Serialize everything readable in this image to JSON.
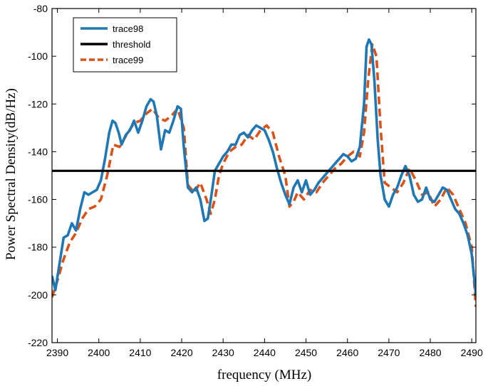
{
  "chart_data": {
    "type": "line",
    "xlabel": "frequency (MHz)",
    "ylabel": "Power Spectral Density(dB/Hz)",
    "xlim": [
      2388.7,
      2491
    ],
    "ylim": [
      -220,
      -80
    ],
    "xticks": [
      2390,
      2400,
      2410,
      2420,
      2430,
      2440,
      2450,
      2460,
      2470,
      2480,
      2490
    ],
    "yticks": [
      -220,
      -200,
      -180,
      -160,
      -140,
      -120,
      -100,
      -80
    ],
    "grid": false,
    "legend_position": "top-left",
    "series": [
      {
        "name": "trace98",
        "color": "#1f77b4",
        "style": "solid",
        "x": [
          2388.7,
          2389.5,
          2390.5,
          2391.5,
          2392.5,
          2393.5,
          2394.5,
          2395.5,
          2396.5,
          2397.5,
          2398.5,
          2399.5,
          2400.5,
          2401.5,
          2402.5,
          2403.3,
          2404,
          2404.8,
          2405.5,
          2406.5,
          2407.5,
          2408.5,
          2409.5,
          2410.5,
          2411.5,
          2412.5,
          2413.2,
          2414,
          2415,
          2416,
          2417,
          2418,
          2419,
          2419.8,
          2420.5,
          2421.5,
          2422.5,
          2423.5,
          2424.5,
          2425.5,
          2426.3,
          2427.2,
          2428,
          2429,
          2430,
          2431,
          2432,
          2433,
          2434,
          2435,
          2436,
          2437,
          2438,
          2439,
          2440,
          2441,
          2442,
          2443,
          2444,
          2445,
          2446,
          2447,
          2448,
          2449,
          2450,
          2451,
          2452,
          2453,
          2454,
          2455,
          2456,
          2457,
          2458,
          2459,
          2460,
          2461,
          2462,
          2463,
          2464,
          2464.6,
          2465.2,
          2465.8,
          2466.5,
          2467.3,
          2468,
          2469,
          2470,
          2471,
          2472,
          2473,
          2474,
          2475,
          2476,
          2477,
          2478,
          2479,
          2480,
          2481,
          2482,
          2483,
          2484,
          2485,
          2486,
          2487,
          2488,
          2489,
          2490,
          2491
        ],
        "y": [
          -192,
          -198,
          -187,
          -176,
          -175,
          -170,
          -173,
          -164,
          -157,
          -158,
          -157,
          -156,
          -152,
          -143,
          -132,
          -127,
          -128,
          -132,
          -137,
          -133,
          -131,
          -127,
          -132,
          -127,
          -121,
          -118,
          -119,
          -125,
          -139,
          -131,
          -132,
          -127,
          -121,
          -122,
          -138,
          -155,
          -157,
          -155,
          -160,
          -169,
          -168,
          -158,
          -148,
          -145,
          -142,
          -140,
          -137,
          -137,
          -133,
          -132,
          -134,
          -131,
          -129,
          -130,
          -131,
          -135,
          -140,
          -147,
          -153,
          -158,
          -162,
          -155,
          -152,
          -157,
          -152,
          -158,
          -156,
          -153,
          -151,
          -149,
          -147,
          -145,
          -143,
          -141,
          -142,
          -144,
          -143,
          -138,
          -120,
          -96,
          -93,
          -95,
          -110,
          -135,
          -150,
          -160,
          -163,
          -158,
          -155,
          -150,
          -146,
          -150,
          -158,
          -161,
          -160,
          -155,
          -160,
          -161,
          -158,
          -155,
          -156,
          -160,
          -164,
          -166,
          -170,
          -175,
          -183,
          -200
        ]
      },
      {
        "name": "threshold",
        "color": "#000000",
        "style": "solid",
        "x": [
          2388.7,
          2491
        ],
        "y": [
          -148,
          -148
        ]
      },
      {
        "name": "trace99",
        "color": "#d95319",
        "style": "dashed",
        "x": [
          2388.7,
          2390,
          2391.5,
          2393,
          2394.5,
          2396,
          2397.5,
          2399,
          2400.5,
          2402,
          2403.5,
          2405,
          2406,
          2407,
          2408.5,
          2410,
          2411.5,
          2413,
          2414.5,
          2416,
          2417.5,
          2419,
          2420.5,
          2421.5,
          2423,
          2424.5,
          2426,
          2427,
          2428,
          2429,
          2430,
          2431.5,
          2433,
          2434.5,
          2436,
          2437.5,
          2439,
          2440.5,
          2442,
          2443.5,
          2445,
          2446,
          2447,
          2448,
          2449.5,
          2451,
          2452.5,
          2454,
          2455.5,
          2457,
          2458.5,
          2460,
          2461.5,
          2463,
          2464,
          2465,
          2466,
          2467,
          2468,
          2469,
          2470.5,
          2472,
          2473.5,
          2475,
          2476.5,
          2478,
          2479.5,
          2481,
          2482.5,
          2484,
          2485.5,
          2487,
          2488.5,
          2490,
          2491
        ],
        "y": [
          -201,
          -194,
          -185,
          -178,
          -174,
          -168,
          -164,
          -163,
          -160,
          -150,
          -137,
          -138,
          -135,
          -132,
          -128,
          -127,
          -124,
          -122,
          -126,
          -127,
          -125,
          -122,
          -130,
          -154,
          -157,
          -153,
          -160,
          -166,
          -160,
          -150,
          -145,
          -140,
          -138,
          -137,
          -133,
          -135,
          -131,
          -129,
          -132,
          -142,
          -150,
          -163,
          -161,
          -157,
          -160,
          -156,
          -157,
          -153,
          -150,
          -147,
          -145,
          -142,
          -140,
          -142,
          -132,
          -110,
          -95,
          -100,
          -130,
          -153,
          -155,
          -157,
          -153,
          -147,
          -152,
          -158,
          -157,
          -163,
          -160,
          -155,
          -158,
          -164,
          -170,
          -180,
          -205
        ]
      }
    ]
  }
}
